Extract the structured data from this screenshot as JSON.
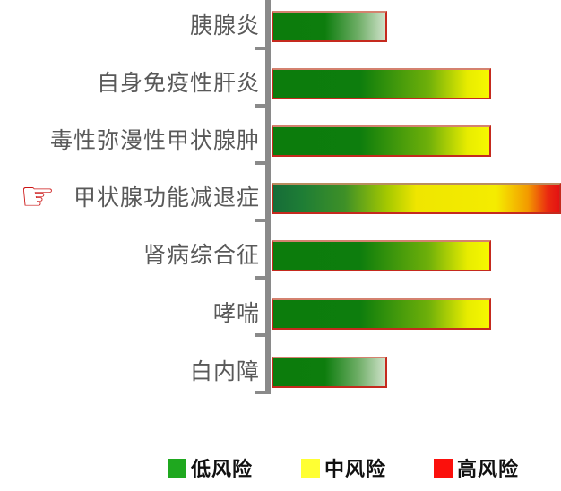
{
  "chart_data": {
    "type": "bar",
    "orientation": "horizontal",
    "title": "",
    "xlabel": "",
    "ylabel": "",
    "grid": false,
    "axis_numeric_labels": false,
    "categories": [
      "胰腺炎",
      "自身免疫性肝炎",
      "毒性弥漫性甲状腺肿",
      "甲状腺功能减退症",
      "肾病综合征",
      "哮喘",
      "白内障"
    ],
    "values_relative": [
      0.4,
      0.76,
      0.76,
      1.0,
      0.76,
      0.76,
      0.4
    ],
    "risk_levels": [
      "低风险",
      "中风险",
      "中风险",
      "高风险",
      "中风险",
      "中风险",
      "低风险"
    ],
    "bar_styles": [
      "low",
      "medium",
      "medium",
      "high",
      "medium",
      "medium",
      "low"
    ],
    "highlighted_category": "甲状腺功能减退症",
    "legend_position": "bottom",
    "legend": [
      {
        "label": "低风险",
        "color": "#1fa81f"
      },
      {
        "label": "中风险",
        "color": "#ffff33"
      },
      {
        "label": "高风险",
        "color": "#fb100c"
      }
    ],
    "colors": {
      "bar_green": "#0d7d0d",
      "bar_yellow": "#f7f800",
      "bar_red": "#e31212",
      "bar_border": "#c52a1e",
      "axis_gray": "#8a8a8a",
      "label_gray": "#595959"
    }
  },
  "icons": {
    "pointer_name": "hand-pointing-right-icon",
    "pointer_glyph": "☞",
    "pointer_color": "#cc1414"
  }
}
